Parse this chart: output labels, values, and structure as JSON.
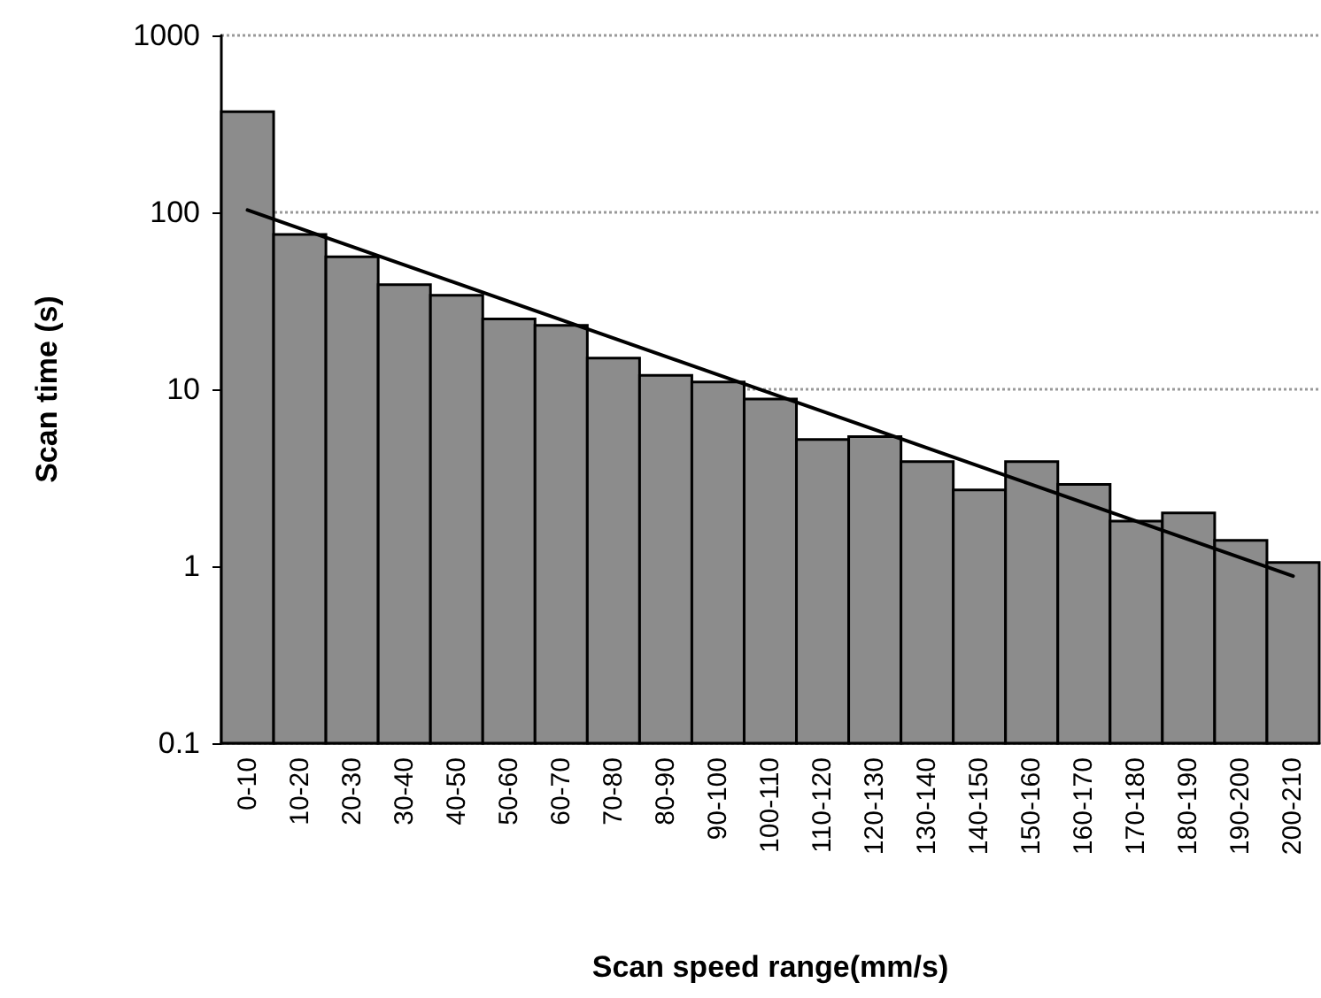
{
  "chart_data": {
    "type": "bar",
    "xlabel": "Scan speed range(mm/s)",
    "ylabel": "Scan time (s)",
    "categories": [
      "0-10",
      "10-20",
      "20-30",
      "30-40",
      "40-50",
      "50-60",
      "60-70",
      "70-80",
      "80-90",
      "90-100",
      "100-110",
      "110-120",
      "120-130",
      "130-140",
      "140-150",
      "150-160",
      "160-170",
      "170-180",
      "180-190",
      "190-200",
      "200-210"
    ],
    "series": [
      {
        "color": "#8c8c8c",
        "values": [
          370,
          75,
          56,
          39,
          34,
          25,
          23,
          15,
          12,
          11,
          8.8,
          5.2,
          5.4,
          3.9,
          2.7,
          3.9,
          2.9,
          1.8,
          2,
          1.4,
          1.05
        ]
      },
      {
        "type": "line",
        "color": "#000000",
        "x": [
          "0-10",
          "200-210"
        ],
        "values": [
          103,
          0.88
        ]
      }
    ],
    "log": "y",
    "ylim": [
      0.1,
      1000
    ],
    "yticks": [
      0.1,
      1,
      10,
      100,
      1000
    ],
    "grid": "y",
    "marker": "none",
    "line_style": "solid"
  }
}
